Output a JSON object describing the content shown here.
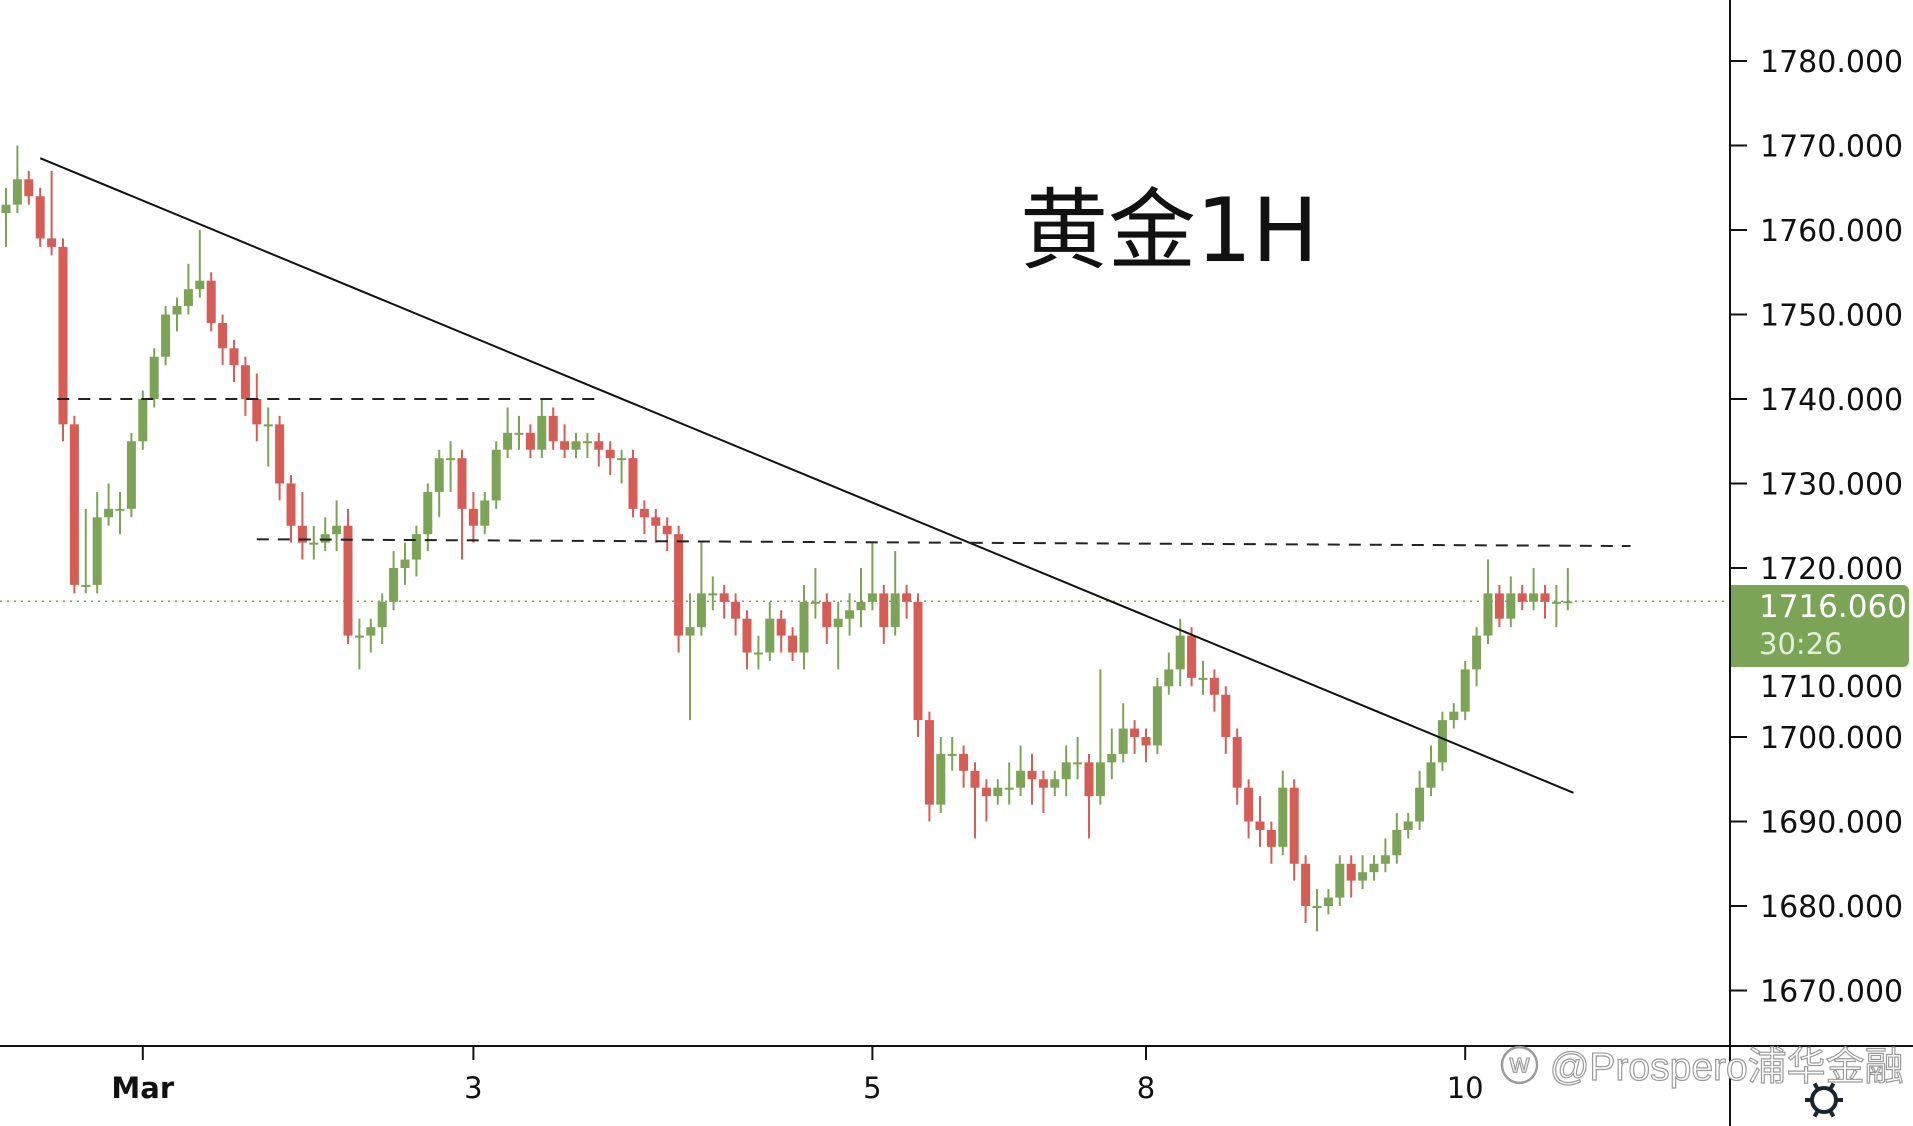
{
  "chart_data": {
    "type": "candlestick",
    "title": "黄金1H",
    "ylim": [
      1662,
      1795
    ],
    "y_ticks": [
      1780,
      1770,
      1760,
      1750,
      1740,
      1730,
      1720,
      1710,
      1700,
      1690,
      1680,
      1670
    ],
    "y_tick_labels": [
      "1780.000",
      "1770.000",
      "1760.000",
      "1750.000",
      "1740.000",
      "1730.000",
      "1720.000",
      "1710.000",
      "1700.000",
      "1690.000",
      "1680.000",
      "1670.000"
    ],
    "x_ticks": [
      {
        "label": "Mar",
        "index": 12,
        "bold": true
      },
      {
        "label": "3",
        "index": 41
      },
      {
        "label": "5",
        "index": 76
      },
      {
        "label": "8",
        "index": 100
      },
      {
        "label": "10",
        "index": 128
      }
    ],
    "colors": {
      "up": "#7ba456",
      "down": "#d65c56",
      "line": "#111111"
    },
    "ohlc": [
      [
        1762,
        1765,
        1758,
        1763
      ],
      [
        1763,
        1770,
        1762,
        1766
      ],
      [
        1766,
        1767,
        1763,
        1764
      ],
      [
        1764,
        1765,
        1758,
        1759
      ],
      [
        1759,
        1767,
        1757,
        1758
      ],
      [
        1758,
        1759,
        1735,
        1737
      ],
      [
        1737,
        1738,
        1717,
        1718
      ],
      [
        1718,
        1727,
        1717,
        1718
      ],
      [
        1718,
        1729,
        1717,
        1726
      ],
      [
        1726,
        1730,
        1725,
        1727
      ],
      [
        1727,
        1729,
        1724,
        1727
      ],
      [
        1727,
        1736,
        1726,
        1735
      ],
      [
        1735,
        1741,
        1734,
        1740
      ],
      [
        1740,
        1746,
        1739,
        1745
      ],
      [
        1745,
        1751,
        1744,
        1750
      ],
      [
        1750,
        1752,
        1748,
        1751
      ],
      [
        1751,
        1756,
        1750,
        1753
      ],
      [
        1753,
        1760,
        1752,
        1754
      ],
      [
        1754,
        1755,
        1748,
        1749
      ],
      [
        1749,
        1750,
        1744,
        1746
      ],
      [
        1746,
        1747,
        1742,
        1744
      ],
      [
        1744,
        1745,
        1738,
        1740
      ],
      [
        1740,
        1743,
        1735,
        1737
      ],
      [
        1737,
        1739,
        1732,
        1737
      ],
      [
        1737,
        1738,
        1728,
        1730
      ],
      [
        1730,
        1731,
        1723,
        1725
      ],
      [
        1725,
        1729,
        1721,
        1723
      ],
      [
        1723,
        1725,
        1721,
        1723
      ],
      [
        1723,
        1726,
        1722,
        1724
      ],
      [
        1724,
        1728,
        1722,
        1725
      ],
      [
        1725,
        1727,
        1711,
        1712
      ],
      [
        1712,
        1714,
        1708,
        1712
      ],
      [
        1712,
        1714,
        1710,
        1713
      ],
      [
        1713,
        1717,
        1711,
        1716
      ],
      [
        1716,
        1722,
        1715,
        1720
      ],
      [
        1720,
        1723,
        1718,
        1721
      ],
      [
        1721,
        1725,
        1719,
        1724
      ],
      [
        1724,
        1730,
        1722,
        1729
      ],
      [
        1729,
        1734,
        1726,
        1733
      ],
      [
        1733,
        1735,
        1729,
        1733
      ],
      [
        1733,
        1734,
        1721,
        1727
      ],
      [
        1727,
        1729,
        1723,
        1725
      ],
      [
        1725,
        1729,
        1724,
        1728
      ],
      [
        1728,
        1735,
        1727,
        1734
      ],
      [
        1734,
        1739,
        1733,
        1736
      ],
      [
        1736,
        1738,
        1734,
        1736
      ],
      [
        1736,
        1737,
        1733,
        1734
      ],
      [
        1734,
        1740,
        1733,
        1738
      ],
      [
        1738,
        1739,
        1734,
        1735
      ],
      [
        1735,
        1737,
        1733,
        1734
      ],
      [
        1734,
        1736,
        1733,
        1735
      ],
      [
        1735,
        1736,
        1733,
        1735
      ],
      [
        1735,
        1736,
        1732,
        1734
      ],
      [
        1734,
        1735,
        1731,
        1733
      ],
      [
        1733,
        1734,
        1730,
        1733
      ],
      [
        1733,
        1734,
        1726,
        1727
      ],
      [
        1727,
        1728,
        1724,
        1726
      ],
      [
        1726,
        1727,
        1723,
        1725
      ],
      [
        1725,
        1726,
        1722,
        1724
      ],
      [
        1724,
        1725,
        1710,
        1712
      ],
      [
        1712,
        1717,
        1702,
        1713
      ],
      [
        1713,
        1723,
        1712,
        1717
      ],
      [
        1717,
        1719,
        1715,
        1717
      ],
      [
        1717,
        1718,
        1714,
        1716
      ],
      [
        1716,
        1717,
        1712,
        1714
      ],
      [
        1714,
        1715,
        1708,
        1710
      ],
      [
        1710,
        1712,
        1708,
        1710
      ],
      [
        1710,
        1716,
        1709,
        1714
      ],
      [
        1714,
        1715,
        1710,
        1712
      ],
      [
        1712,
        1713,
        1709,
        1710
      ],
      [
        1710,
        1718,
        1708,
        1716
      ],
      [
        1716,
        1720,
        1714,
        1716
      ],
      [
        1716,
        1717,
        1711,
        1713
      ],
      [
        1713,
        1716,
        1708,
        1714
      ],
      [
        1714,
        1717,
        1712,
        1715
      ],
      [
        1715,
        1720,
        1713,
        1716
      ],
      [
        1716,
        1723,
        1715,
        1717
      ],
      [
        1717,
        1718,
        1711,
        1713
      ],
      [
        1713,
        1722,
        1712,
        1717
      ],
      [
        1717,
        1718,
        1714,
        1716
      ],
      [
        1716,
        1717,
        1700,
        1702
      ],
      [
        1702,
        1703,
        1690,
        1692
      ],
      [
        1692,
        1700,
        1691,
        1698
      ],
      [
        1698,
        1700,
        1696,
        1698
      ],
      [
        1698,
        1699,
        1694,
        1696
      ],
      [
        1696,
        1697,
        1688,
        1694
      ],
      [
        1694,
        1695,
        1690,
        1693
      ],
      [
        1693,
        1695,
        1692,
        1694
      ],
      [
        1694,
        1697,
        1692,
        1694
      ],
      [
        1694,
        1699,
        1693,
        1696
      ],
      [
        1696,
        1698,
        1692,
        1695
      ],
      [
        1695,
        1696,
        1691,
        1694
      ],
      [
        1694,
        1696,
        1693,
        1695
      ],
      [
        1695,
        1699,
        1693,
        1697
      ],
      [
        1697,
        1700,
        1695,
        1697
      ],
      [
        1697,
        1698,
        1688,
        1693
      ],
      [
        1693,
        1708,
        1692,
        1697
      ],
      [
        1697,
        1701,
        1695,
        1698
      ],
      [
        1698,
        1704,
        1697,
        1701
      ],
      [
        1701,
        1702,
        1698,
        1700
      ],
      [
        1700,
        1701,
        1697,
        1699
      ],
      [
        1699,
        1707,
        1698,
        1706
      ],
      [
        1706,
        1710,
        1705,
        1708
      ],
      [
        1708,
        1714,
        1706,
        1712
      ],
      [
        1712,
        1713,
        1706,
        1707
      ],
      [
        1707,
        1709,
        1705,
        1707
      ],
      [
        1707,
        1708,
        1703,
        1705
      ],
      [
        1705,
        1706,
        1698,
        1700
      ],
      [
        1700,
        1701,
        1692,
        1694
      ],
      [
        1694,
        1695,
        1688,
        1690
      ],
      [
        1690,
        1693,
        1687,
        1689
      ],
      [
        1689,
        1690,
        1685,
        1687
      ],
      [
        1687,
        1696,
        1686,
        1694
      ],
      [
        1694,
        1695,
        1683,
        1685
      ],
      [
        1685,
        1686,
        1678,
        1680
      ],
      [
        1680,
        1682,
        1677,
        1680
      ],
      [
        1680,
        1682,
        1679,
        1681
      ],
      [
        1681,
        1686,
        1680,
        1685
      ],
      [
        1685,
        1686,
        1681,
        1683
      ],
      [
        1683,
        1686,
        1682,
        1684
      ],
      [
        1684,
        1686,
        1683,
        1685
      ],
      [
        1685,
        1688,
        1684,
        1686
      ],
      [
        1686,
        1691,
        1685,
        1689
      ],
      [
        1689,
        1691,
        1688,
        1690
      ],
      [
        1690,
        1696,
        1689,
        1694
      ],
      [
        1694,
        1699,
        1693,
        1697
      ],
      [
        1697,
        1703,
        1696,
        1702
      ],
      [
        1702,
        1704,
        1701,
        1703
      ],
      [
        1703,
        1709,
        1702,
        1708
      ],
      [
        1708,
        1713,
        1706,
        1712
      ],
      [
        1712,
        1721,
        1711,
        1717
      ],
      [
        1717,
        1718,
        1713,
        1714
      ],
      [
        1714,
        1719,
        1713,
        1717
      ],
      [
        1717,
        1718,
        1715,
        1716
      ],
      [
        1716,
        1720,
        1715,
        1717
      ],
      [
        1717,
        1718,
        1714,
        1716
      ],
      [
        1716,
        1718,
        1713,
        1716
      ],
      [
        1716,
        1720,
        1715,
        1716.06
      ]
    ],
    "annotations": {
      "trendline": {
        "from": [
          3,
          1768.5
        ],
        "to": [
          137.5,
          1693.4
        ],
        "style": "solid"
      },
      "levels": [
        {
          "from": [
            4.5,
            1740
          ],
          "to": [
            52,
            1740
          ],
          "style": "dashed"
        },
        {
          "from": [
            22,
            1723.4
          ],
          "to": [
            142.5,
            1722.6
          ],
          "style": "dashed"
        }
      ],
      "current_price_line": {
        "value": 1716.06,
        "style": "dotted",
        "color": "#7ba456"
      }
    }
  },
  "price_badge": {
    "price": "1716.060",
    "countdown": "30:26",
    "color": "#7ba456"
  },
  "watermark": "@Prospero浦华金融",
  "settings_icon": "gear-icon"
}
